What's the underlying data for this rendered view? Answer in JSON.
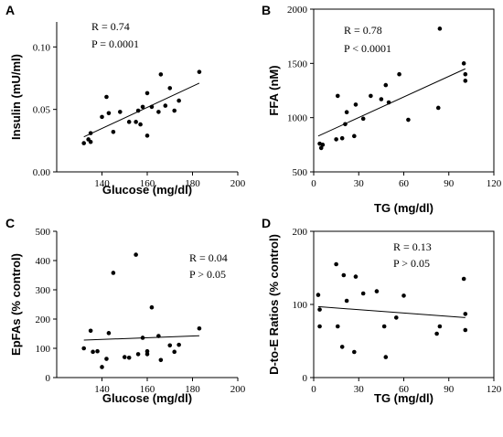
{
  "chart_data": [
    {
      "panel": "A",
      "type": "scatter",
      "xlabel": "Glucose (mg/dl)",
      "ylabel": "Insulin (mU/ml)",
      "xlim": [
        120,
        200
      ],
      "ylim": [
        0,
        0.12
      ],
      "xticks": [
        140,
        160,
        180,
        200
      ],
      "yticks": [
        0.0,
        0.05,
        0.1
      ],
      "ytick_labels": [
        "0.00",
        "0.05",
        "0.10"
      ],
      "annotation": [
        "R = 0.74",
        "P = 0.0001"
      ],
      "regression": [
        [
          132,
          0.028
        ],
        [
          183,
          0.071
        ]
      ],
      "points": [
        [
          132,
          0.023
        ],
        [
          134,
          0.026
        ],
        [
          135,
          0.024
        ],
        [
          135,
          0.031
        ],
        [
          140,
          0.044
        ],
        [
          142,
          0.06
        ],
        [
          143,
          0.047
        ],
        [
          145,
          0.032
        ],
        [
          148,
          0.048
        ],
        [
          152,
          0.04
        ],
        [
          155,
          0.04
        ],
        [
          156,
          0.049
        ],
        [
          157,
          0.038
        ],
        [
          158,
          0.052
        ],
        [
          160,
          0.063
        ],
        [
          160,
          0.029
        ],
        [
          162,
          0.052
        ],
        [
          165,
          0.048
        ],
        [
          166,
          0.078
        ],
        [
          168,
          0.053
        ],
        [
          170,
          0.067
        ],
        [
          172,
          0.049
        ],
        [
          174,
          0.057
        ],
        [
          183,
          0.08
        ]
      ]
    },
    {
      "panel": "B",
      "type": "scatter",
      "xlabel": "TG (mg/dl)",
      "ylabel": "FFA (nM)",
      "xlim": [
        0,
        120
      ],
      "ylim": [
        500,
        2000
      ],
      "xticks": [
        0,
        30,
        60,
        90,
        120
      ],
      "yticks": [
        500,
        1000,
        1500,
        2000
      ],
      "ytick_labels": [
        "500",
        "1000",
        "1500",
        "2000"
      ],
      "annotation": [
        "R = 0.78",
        "P < 0.0001"
      ],
      "regression": [
        [
          3,
          830
        ],
        [
          101,
          1450
        ]
      ],
      "points": [
        [
          4,
          760
        ],
        [
          5,
          720
        ],
        [
          6,
          750
        ],
        [
          15,
          800
        ],
        [
          16,
          1200
        ],
        [
          19,
          810
        ],
        [
          21,
          940
        ],
        [
          22,
          1050
        ],
        [
          27,
          830
        ],
        [
          28,
          1120
        ],
        [
          33,
          990
        ],
        [
          38,
          1200
        ],
        [
          45,
          1170
        ],
        [
          48,
          1300
        ],
        [
          50,
          1140
        ],
        [
          57,
          1400
        ],
        [
          63,
          980
        ],
        [
          83,
          1090
        ],
        [
          84,
          1820
        ],
        [
          100,
          1500
        ],
        [
          101,
          1340
        ],
        [
          101,
          1400
        ]
      ]
    },
    {
      "panel": "C",
      "type": "scatter",
      "xlabel": "Glucose (mg/dl)",
      "ylabel": "EpFAs (% control)",
      "xlim": [
        120,
        200
      ],
      "ylim": [
        0,
        500
      ],
      "xticks": [
        140,
        160,
        180,
        200
      ],
      "yticks": [
        0,
        100,
        200,
        300,
        400,
        500
      ],
      "ytick_labels": [
        "0",
        "100",
        "200",
        "300",
        "400",
        "500"
      ],
      "annotation": [
        "R = 0.04",
        "P > 0.05"
      ],
      "regression": [
        [
          132,
          128
        ],
        [
          183,
          143
        ]
      ],
      "points": [
        [
          132,
          100
        ],
        [
          135,
          160
        ],
        [
          136,
          88
        ],
        [
          138,
          90
        ],
        [
          140,
          36
        ],
        [
          142,
          64
        ],
        [
          143,
          152
        ],
        [
          145,
          358
        ],
        [
          150,
          70
        ],
        [
          152,
          68
        ],
        [
          155,
          420
        ],
        [
          156,
          80
        ],
        [
          158,
          136
        ],
        [
          160,
          90
        ],
        [
          160,
          80
        ],
        [
          162,
          240
        ],
        [
          165,
          142
        ],
        [
          166,
          60
        ],
        [
          170,
          110
        ],
        [
          172,
          88
        ],
        [
          174,
          112
        ],
        [
          183,
          168
        ]
      ]
    },
    {
      "panel": "D",
      "type": "scatter",
      "xlabel": "TG (mg/dl)",
      "ylabel": "D-to-E Ratios (% control)",
      "xlim": [
        0,
        120
      ],
      "ylim": [
        0,
        200
      ],
      "xticks": [
        0,
        30,
        60,
        90,
        120
      ],
      "yticks": [
        0,
        100,
        200
      ],
      "ytick_labels": [
        "0",
        "100",
        "200"
      ],
      "annotation": [
        "R = 0.13",
        "P > 0.05"
      ],
      "regression": [
        [
          3,
          97
        ],
        [
          101,
          82
        ]
      ],
      "points": [
        [
          3,
          113
        ],
        [
          4,
          93
        ],
        [
          4,
          70
        ],
        [
          15,
          155
        ],
        [
          16,
          70
        ],
        [
          19,
          42
        ],
        [
          20,
          140
        ],
        [
          22,
          105
        ],
        [
          27,
          35
        ],
        [
          28,
          138
        ],
        [
          33,
          115
        ],
        [
          42,
          118
        ],
        [
          47,
          70
        ],
        [
          48,
          28
        ],
        [
          55,
          82
        ],
        [
          60,
          112
        ],
        [
          82,
          60
        ],
        [
          84,
          70
        ],
        [
          100,
          135
        ],
        [
          101,
          87
        ],
        [
          101,
          65
        ]
      ]
    }
  ]
}
